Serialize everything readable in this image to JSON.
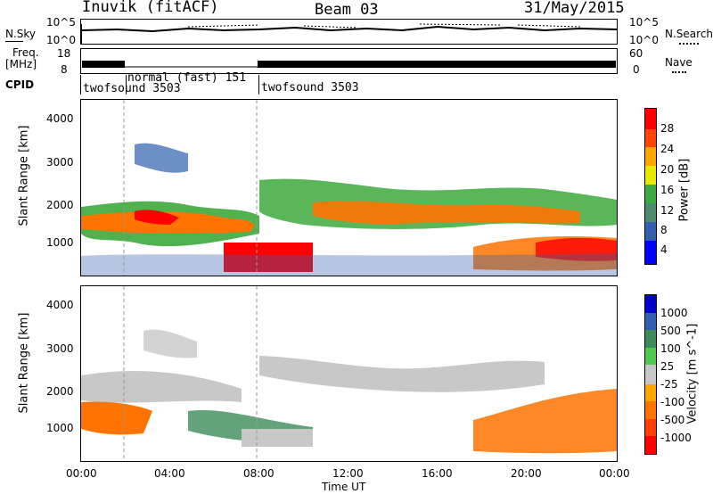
{
  "header": {
    "title": "Inuvik  (fitACF)",
    "beam": "Beam 03",
    "date": "31/May/2015"
  },
  "noise_panel": {
    "label": "N.Sky",
    "right_label": "N.Search",
    "ticks": [
      "10^5",
      "10^0"
    ]
  },
  "freq_panel": {
    "label": "Freq.",
    "unit": "[MHz]",
    "left_ticks": [
      "18",
      "8"
    ],
    "right_ticks": [
      "60",
      "0"
    ],
    "right_label": "Nave"
  },
  "cpid_panel": {
    "label": "CPID",
    "segments": [
      "twofsound 3503",
      "normal (fast) 151",
      "twofsound 3503"
    ]
  },
  "chart_data": [
    {
      "type": "heatmap",
      "title": "",
      "ylabel": "Slant Range [km]",
      "xlabel": "",
      "ylim": [
        180,
        4500
      ],
      "y_ticks": [
        "4000",
        "3000",
        "2000",
        "1000"
      ],
      "x_ticks": [
        "00:00",
        "04:00",
        "08:00",
        "12:00",
        "16:00",
        "20:00",
        "00:00"
      ],
      "colorbar": {
        "label": "Power [dB]",
        "ticks": [
          "28",
          "24",
          "20",
          "16",
          "12",
          "8",
          "4"
        ],
        "colors": [
          "#0000ff",
          "#2f5faf",
          "#4a8c6e",
          "#3caa3c",
          "#e8e800",
          "#ffa500",
          "#ff4500",
          "#ff0000"
        ]
      }
    },
    {
      "type": "heatmap",
      "title": "",
      "ylabel": "Slant Range [km]",
      "xlabel": "Time UT",
      "ylim": [
        180,
        4500
      ],
      "y_ticks": [
        "4000",
        "3000",
        "2000",
        "1000"
      ],
      "x_ticks": [
        "00:00",
        "04:00",
        "08:00",
        "12:00",
        "16:00",
        "20:00",
        "00:00"
      ],
      "colorbar": {
        "label": "Velocity [m s^-1]",
        "ticks": [
          "1000",
          "500",
          "100",
          "25",
          "-25",
          "-100",
          "-500",
          "-1000"
        ],
        "colors": [
          "#0000c8",
          "#2f5faf",
          "#3c8c5a",
          "#50c850",
          "#c8c8c8",
          "#ffa500",
          "#ff7300",
          "#ff4000",
          "#ff0000"
        ]
      }
    }
  ]
}
